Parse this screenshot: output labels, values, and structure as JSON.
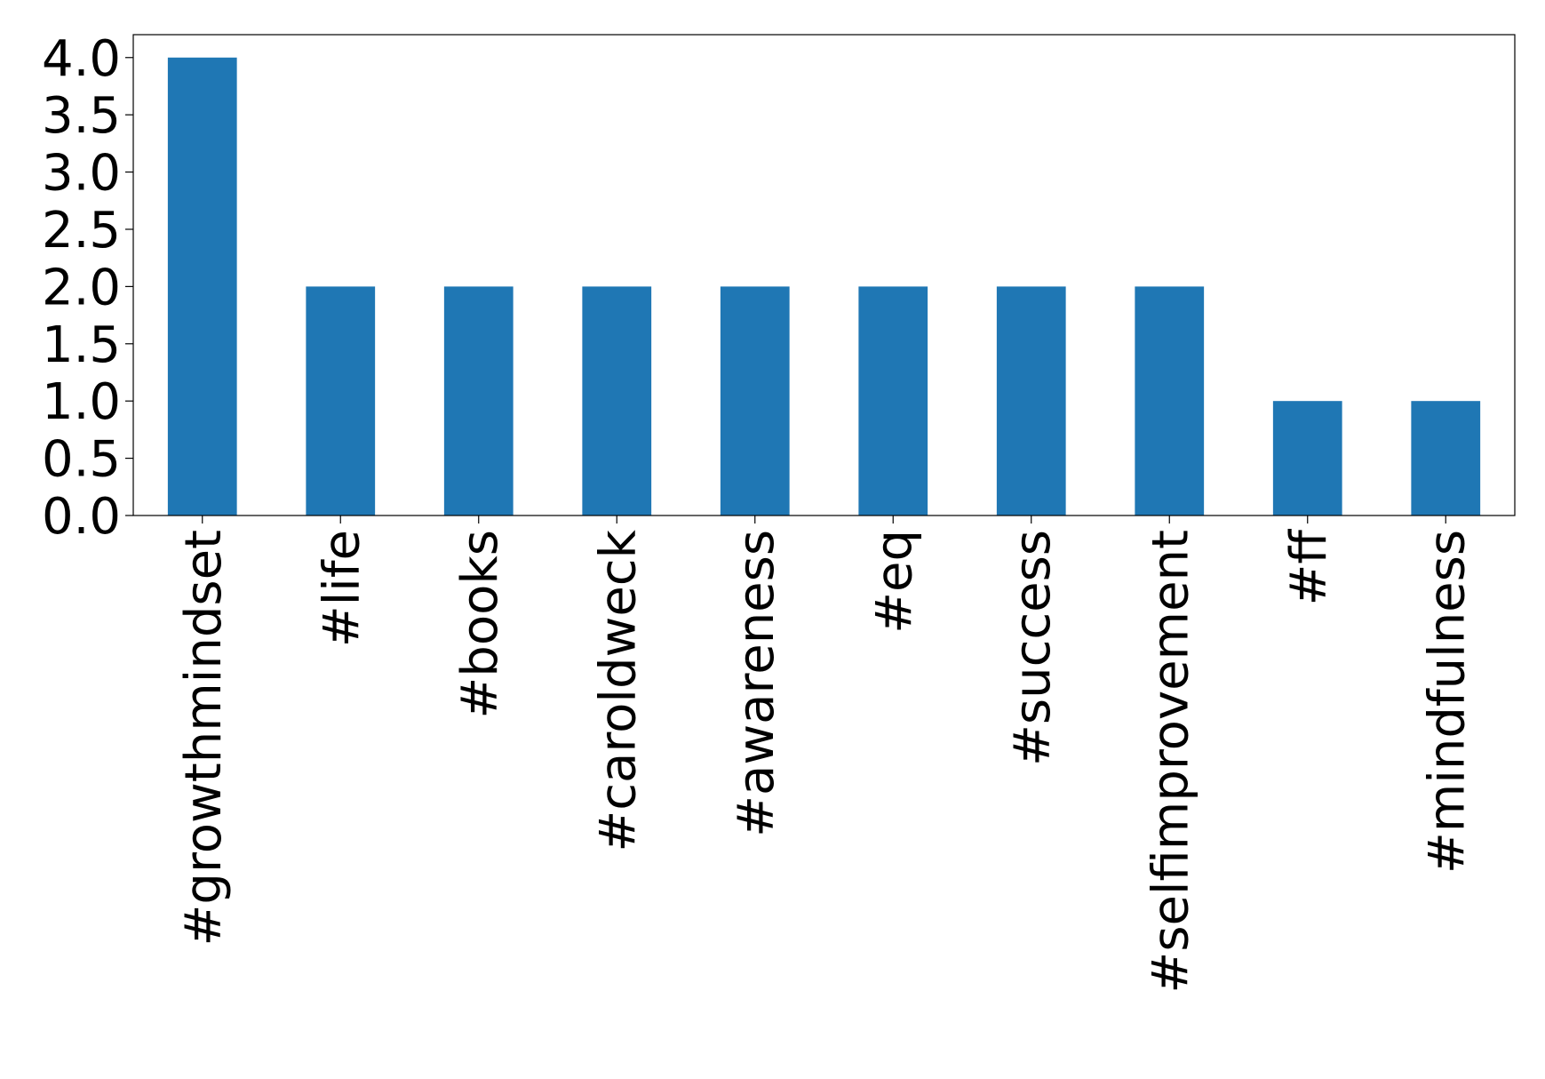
{
  "chart_data": {
    "type": "bar",
    "title": "",
    "xlabel": "",
    "ylabel": "",
    "categories": [
      "#growthmindset",
      "#life",
      "#books",
      "#caroldweck",
      "#awareness",
      "#eq",
      "#success",
      "#selfimprovement",
      "#ff",
      "#mindfulness"
    ],
    "values": [
      4,
      2,
      2,
      2,
      2,
      2,
      2,
      2,
      1,
      1
    ],
    "ylim": [
      0,
      4.2
    ],
    "yticks": [
      "0.0",
      "0.5",
      "1.0",
      "1.5",
      "2.0",
      "2.5",
      "3.0",
      "3.5",
      "4.0"
    ],
    "ytick_values": [
      0,
      0.5,
      1.0,
      1.5,
      2.0,
      2.5,
      3.0,
      3.5,
      4.0
    ],
    "grid": false,
    "legend": "none",
    "bar_color": "#1f77b4"
  }
}
